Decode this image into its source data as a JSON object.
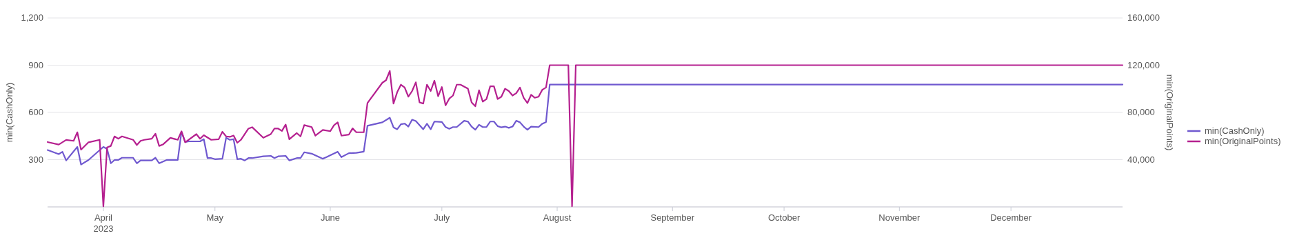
{
  "chart_data": {
    "type": "line",
    "ylabel": "min(CashOnly)",
    "y2label": "min(OriginalPoints)",
    "xlim": [
      "2023-03-17",
      "2023-12-31"
    ],
    "xticks": [
      {
        "value": "2023-04-01",
        "label": "April\n2023"
      },
      {
        "value": "2023-05-01",
        "label": "May"
      },
      {
        "value": "2023-06-01",
        "label": "June"
      },
      {
        "value": "2023-07-01",
        "label": "July"
      },
      {
        "value": "2023-08-01",
        "label": "August"
      },
      {
        "value": "2023-09-01",
        "label": "September"
      },
      {
        "value": "2023-10-01",
        "label": "October"
      },
      {
        "value": "2023-11-01",
        "label": "November"
      },
      {
        "value": "2023-12-01",
        "label": "December"
      }
    ],
    "ylim": [
      0,
      1200
    ],
    "yticks": [
      {
        "value": 0,
        "label": null
      },
      300,
      600,
      900,
      {
        "value": 1200,
        "label": "1,200"
      }
    ],
    "y2lim": [
      0,
      160000
    ],
    "y2ticks": [
      {
        "value": 40000,
        "label": "40,000"
      },
      {
        "value": 80000,
        "label": "80,000"
      },
      {
        "value": 120000,
        "label": "120,000"
      },
      {
        "value": 160000,
        "label": "160,000"
      }
    ],
    "grid": "y",
    "legend": "right",
    "series": [
      {
        "name": "min(CashOnly)",
        "color": "#6f58cf",
        "x": [
          "2023-03-17",
          "2023-03-20",
          "2023-03-21",
          "2023-03-22",
          "2023-03-25",
          "2023-03-26",
          "2023-03-28",
          "2023-04-01",
          "2023-04-02",
          "2023-04-03",
          "2023-04-04",
          "2023-04-05",
          "2023-04-06",
          "2023-04-09",
          "2023-04-10",
          "2023-04-11",
          "2023-04-14",
          "2023-04-15",
          "2023-04-16",
          "2023-04-18",
          "2023-04-21",
          "2023-04-22",
          "2023-04-23",
          "2023-04-24",
          "2023-04-27",
          "2023-04-28",
          "2023-04-29",
          "2023-04-30",
          "2023-05-01",
          "2023-05-03",
          "2023-05-04",
          "2023-05-05",
          "2023-05-06",
          "2023-05-07",
          "2023-05-08",
          "2023-05-09",
          "2023-05-10",
          "2023-05-11",
          "2023-05-14",
          "2023-05-16",
          "2023-05-17",
          "2023-05-18",
          "2023-05-20",
          "2023-05-21",
          "2023-05-23",
          "2023-05-24",
          "2023-05-25",
          "2023-05-27",
          "2023-05-30",
          "2023-05-31",
          "2023-06-03",
          "2023-06-04",
          "2023-06-06",
          "2023-06-08",
          "2023-06-10",
          "2023-06-11",
          "2023-06-15",
          "2023-06-17",
          "2023-06-18",
          "2023-06-19",
          "2023-06-20",
          "2023-06-21",
          "2023-06-22",
          "2023-06-23",
          "2023-06-24",
          "2023-06-26",
          "2023-06-27",
          "2023-06-28",
          "2023-06-29",
          "2023-07-01",
          "2023-07-02",
          "2023-07-03",
          "2023-07-04",
          "2023-07-05",
          "2023-07-07",
          "2023-07-08",
          "2023-07-09",
          "2023-07-10",
          "2023-07-11",
          "2023-07-12",
          "2023-07-13",
          "2023-07-14",
          "2023-07-15",
          "2023-07-16",
          "2023-07-17",
          "2023-07-18",
          "2023-07-19",
          "2023-07-20",
          "2023-07-21",
          "2023-07-22",
          "2023-07-23",
          "2023-07-24",
          "2023-07-25",
          "2023-07-27",
          "2023-07-28",
          "2023-07-29",
          "2023-07-30",
          "2023-12-31"
        ],
        "values": [
          361,
          335,
          350,
          295,
          381,
          269,
          298,
          381,
          368,
          277,
          298,
          298,
          312,
          312,
          277,
          295,
          295,
          312,
          277,
          298,
          298,
          477,
          412,
          416,
          416,
          430,
          310,
          310,
          303,
          306,
          439,
          426,
          430,
          303,
          306,
          295,
          310,
          310,
          321,
          324,
          310,
          321,
          324,
          295,
          310,
          310,
          347,
          338,
          306,
          316,
          350,
          316,
          341,
          343,
          351,
          515,
          537,
          566,
          505,
          493,
          525,
          529,
          510,
          554,
          545,
          493,
          528,
          493,
          542,
          539,
          507,
          496,
          507,
          507,
          547,
          542,
          510,
          490,
          522,
          507,
          507,
          542,
          542,
          513,
          505,
          510,
          502,
          510,
          547,
          537,
          510,
          490,
          510,
          507,
          528,
          539,
          777,
          777
        ]
      },
      {
        "name": "min(OriginalPoints)",
        "color": "#b5208f",
        "axis": "y2",
        "x": [
          "2023-03-17",
          "2023-03-20",
          "2023-03-22",
          "2023-03-24",
          "2023-03-25",
          "2023-03-26",
          "2023-03-28",
          "2023-03-31",
          "2023-04-01",
          "2023-04-02",
          "2023-04-03",
          "2023-04-04",
          "2023-04-05",
          "2023-04-06",
          "2023-04-09",
          "2023-04-10",
          "2023-04-11",
          "2023-04-12",
          "2023-04-14",
          "2023-04-15",
          "2023-04-16",
          "2023-04-17",
          "2023-04-19",
          "2023-04-21",
          "2023-04-22",
          "2023-04-23",
          "2023-04-26",
          "2023-04-27",
          "2023-04-28",
          "2023-04-30",
          "2023-05-02",
          "2023-05-03",
          "2023-05-04",
          "2023-05-05",
          "2023-05-06",
          "2023-05-07",
          "2023-05-08",
          "2023-05-10",
          "2023-05-11",
          "2023-05-14",
          "2023-05-16",
          "2023-05-17",
          "2023-05-18",
          "2023-05-19",
          "2023-05-20",
          "2023-05-21",
          "2023-05-23",
          "2023-05-24",
          "2023-05-25",
          "2023-05-27",
          "2023-05-28",
          "2023-05-30",
          "2023-06-01",
          "2023-06-02",
          "2023-06-03",
          "2023-06-04",
          "2023-06-06",
          "2023-06-07",
          "2023-06-08",
          "2023-06-10",
          "2023-06-11",
          "2023-06-15",
          "2023-06-16",
          "2023-06-17",
          "2023-06-18",
          "2023-06-19",
          "2023-06-20",
          "2023-06-21",
          "2023-06-22",
          "2023-06-23",
          "2023-06-24",
          "2023-06-25",
          "2023-06-26",
          "2023-06-27",
          "2023-06-28",
          "2023-06-29",
          "2023-06-30",
          "2023-07-01",
          "2023-07-02",
          "2023-07-03",
          "2023-07-04",
          "2023-07-05",
          "2023-07-06",
          "2023-07-08",
          "2023-07-09",
          "2023-07-10",
          "2023-07-11",
          "2023-07-12",
          "2023-07-13",
          "2023-07-14",
          "2023-07-15",
          "2023-07-16",
          "2023-07-17",
          "2023-07-18",
          "2023-07-19",
          "2023-07-20",
          "2023-07-21",
          "2023-07-22",
          "2023-07-23",
          "2023-07-24",
          "2023-07-25",
          "2023-07-26",
          "2023-07-27",
          "2023-07-28",
          "2023-07-29",
          "2023-07-30",
          "2023-08-04",
          "2023-08-05",
          "2023-08-06",
          "2023-12-31"
        ],
        "values": [
          54900,
          52800,
          56700,
          55900,
          63200,
          48500,
          54700,
          56800,
          500,
          50400,
          51600,
          59700,
          57700,
          59700,
          56800,
          52400,
          55900,
          56800,
          57700,
          62000,
          51600,
          52800,
          58500,
          56800,
          64000,
          54700,
          61600,
          57700,
          60700,
          56800,
          57300,
          63600,
          59700,
          59300,
          60400,
          54300,
          56800,
          66300,
          67500,
          58500,
          61600,
          66400,
          66300,
          64300,
          69700,
          57300,
          62500,
          59700,
          69300,
          67600,
          60300,
          65200,
          64100,
          69100,
          71600,
          60300,
          61200,
          66500,
          63200,
          63200,
          87900,
          105100,
          107300,
          115100,
          87500,
          97200,
          103500,
          101100,
          93300,
          98100,
          105500,
          88500,
          87500,
          103500,
          98100,
          106900,
          93700,
          101500,
          86000,
          91700,
          94300,
          103500,
          103500,
          100100,
          88500,
          85200,
          98800,
          89100,
          91300,
          102100,
          102100,
          91300,
          93300,
          100100,
          98100,
          94300,
          96300,
          101100,
          92400,
          87900,
          94900,
          92400,
          93300,
          99200,
          101100,
          120000,
          120000,
          500,
          120000,
          120000
        ]
      }
    ]
  }
}
